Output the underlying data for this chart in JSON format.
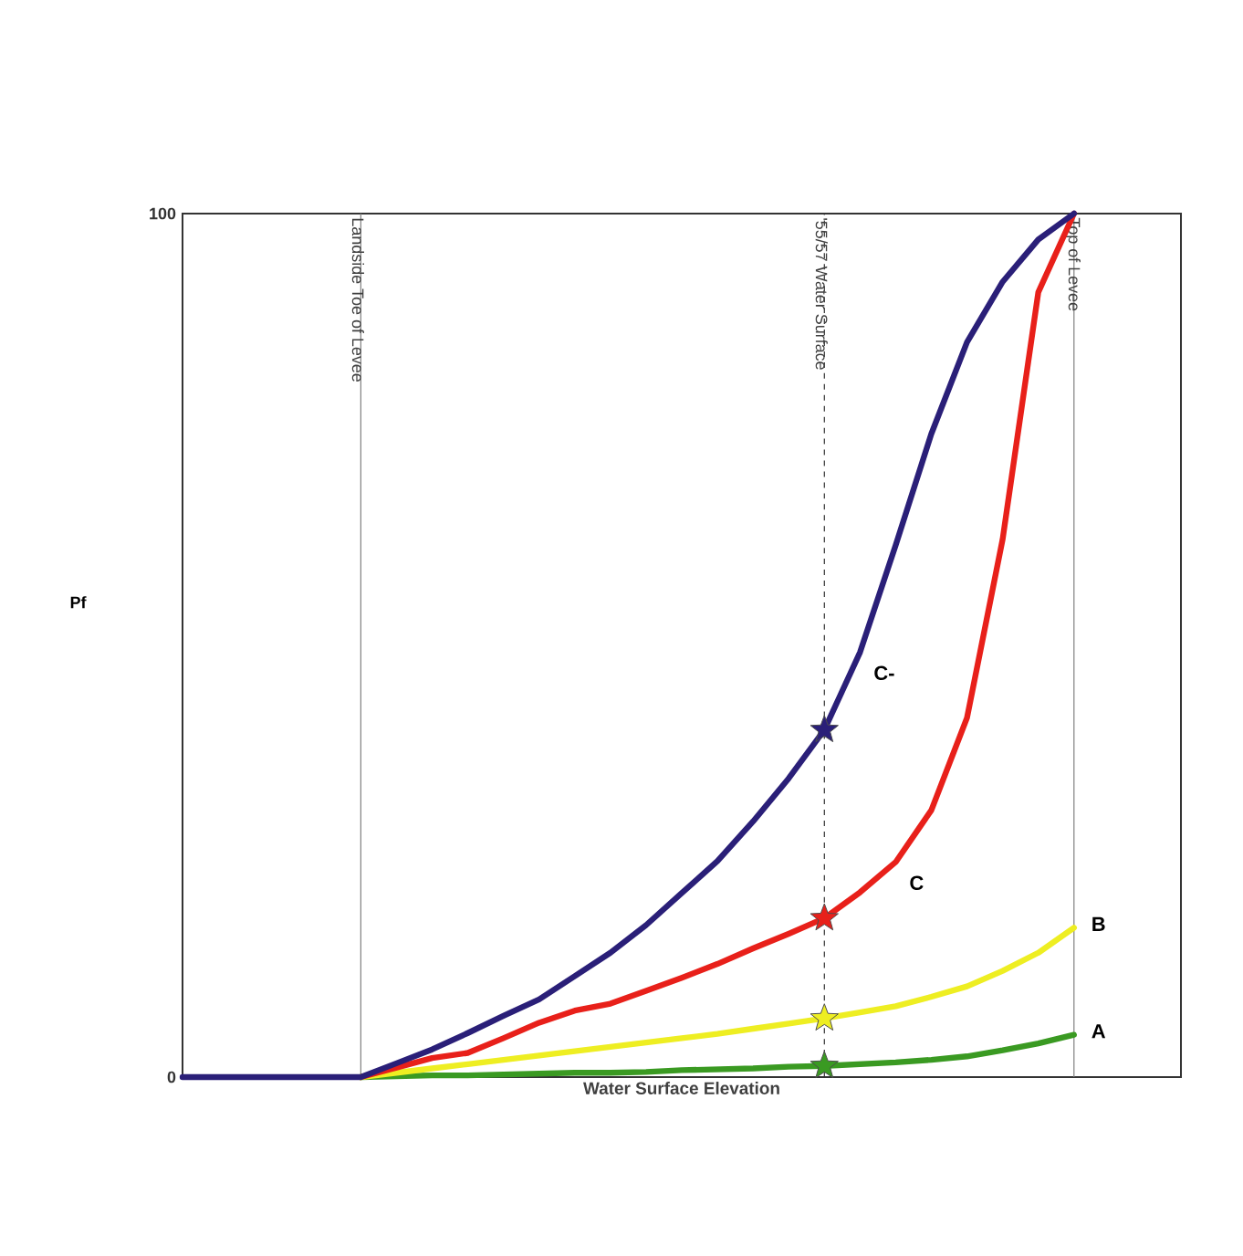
{
  "chart_data": {
    "type": "line",
    "xlabel": "Water Surface Elevation",
    "ylabel": "Pf",
    "categories": [
      null,
      null,
      null,
      null,
      null,
      null,
      null,
      null,
      null,
      null,
      null,
      null,
      null,
      null,
      null,
      null,
      null,
      null,
      null,
      null,
      null,
      null,
      null,
      null,
      null,
      null
    ],
    "ylim": [
      0,
      100
    ],
    "yticks": [
      0,
      100
    ],
    "tick_labels": "y",
    "annotations": [
      "Landside Toe of Levee",
      "'55/57 Water Surface",
      "Top of Levee"
    ],
    "series": [
      {
        "name": "C-",
        "color": "#2a1f78",
        "values": [
          0,
          0,
          0,
          0,
          0,
          0,
          1.6,
          3.2,
          5.1,
          7.1,
          9.0,
          11.7,
          14.4,
          17.6,
          21.3,
          25.0,
          29.6,
          34.6,
          40.2,
          49.2,
          61.6,
          74.5,
          85.1,
          92.1,
          97.0,
          100
        ]
      },
      {
        "name": "C",
        "color": "#e8201a",
        "values": [
          null,
          null,
          null,
          null,
          null,
          0,
          1.1,
          2.2,
          2.8,
          4.5,
          6.3,
          7.7,
          8.5,
          10.0,
          11.5,
          13.1,
          14.9,
          16.6,
          18.4,
          21.4,
          24.9,
          30.9,
          41.6,
          62.3,
          90.9,
          100
        ]
      },
      {
        "name": "B",
        "color": "#eeee22",
        "values": [
          null,
          null,
          null,
          null,
          null,
          0,
          0.5,
          1.0,
          1.5,
          2.0,
          2.5,
          3.0,
          3.5,
          4.0,
          4.5,
          5.0,
          5.6,
          6.2,
          6.8,
          7.5,
          8.2,
          9.3,
          10.5,
          12.3,
          14.4,
          17.3
        ]
      },
      {
        "name": "A",
        "color": "#3a9a22",
        "values": [
          null,
          null,
          null,
          null,
          null,
          0,
          0.1,
          0.2,
          0.2,
          0.3,
          0.4,
          0.5,
          0.5,
          0.6,
          0.8,
          0.9,
          1.0,
          1.2,
          1.3,
          1.5,
          1.7,
          2.0,
          2.4,
          3.1,
          3.9,
          4.9
        ]
      },
      {
        "type": "scatter",
        "marker": "star",
        "color": "#2a1f78",
        "values": [
          null,
          null,
          null,
          null,
          null,
          null,
          null,
          null,
          null,
          null,
          null,
          null,
          null,
          null,
          null,
          null,
          null,
          null,
          40.2,
          null,
          null,
          null,
          null,
          null,
          null,
          null
        ]
      },
      {
        "type": "scatter",
        "marker": "star",
        "color": "#e8201a",
        "values": [
          null,
          null,
          null,
          null,
          null,
          null,
          null,
          null,
          null,
          null,
          null,
          null,
          null,
          null,
          null,
          null,
          null,
          null,
          18.4,
          null,
          null,
          null,
          null,
          null,
          null,
          null
        ]
      },
      {
        "type": "scatter",
        "marker": "star",
        "color": "#eeee22",
        "values": [
          null,
          null,
          null,
          null,
          null,
          null,
          null,
          null,
          null,
          null,
          null,
          null,
          null,
          null,
          null,
          null,
          null,
          null,
          6.8,
          null,
          null,
          null,
          null,
          null,
          null,
          null
        ]
      },
      {
        "type": "scatter",
        "marker": "star",
        "color": "#3a9a22",
        "values": [
          null,
          null,
          null,
          null,
          null,
          null,
          null,
          null,
          null,
          null,
          null,
          null,
          null,
          null,
          null,
          null,
          null,
          null,
          1.3,
          null,
          null,
          null,
          null,
          null,
          null,
          null
        ]
      }
    ]
  }
}
